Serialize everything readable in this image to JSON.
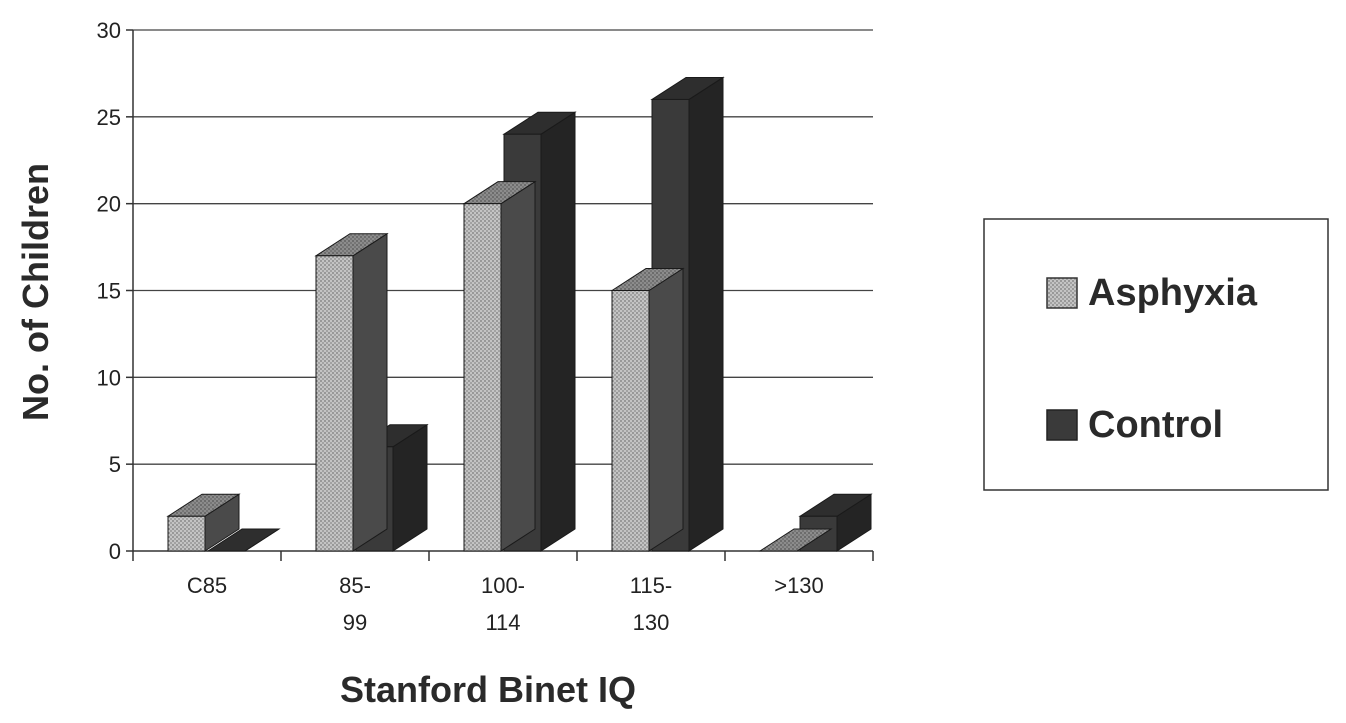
{
  "chart_data": {
    "type": "bar",
    "title": "",
    "xlabel": "Stanford Binet IQ",
    "ylabel": "No. of Children",
    "categories": [
      [
        "C85"
      ],
      [
        "85-",
        "99"
      ],
      [
        "100-",
        "114"
      ],
      [
        "115-",
        "130"
      ],
      [
        ">130"
      ]
    ],
    "series": [
      {
        "name": "Asphyxia",
        "values": [
          2,
          17,
          20,
          15,
          0
        ],
        "color": "#b5b5b5"
      },
      {
        "name": "Control",
        "values": [
          0,
          6,
          24,
          26,
          2
        ],
        "color": "#3a3a3a"
      }
    ],
    "ylim": [
      0,
      30
    ],
    "yticks": [
      0,
      5,
      10,
      15,
      20,
      25,
      30
    ],
    "grid": true,
    "legend_position": "right",
    "style": "3d-clustered-column"
  }
}
